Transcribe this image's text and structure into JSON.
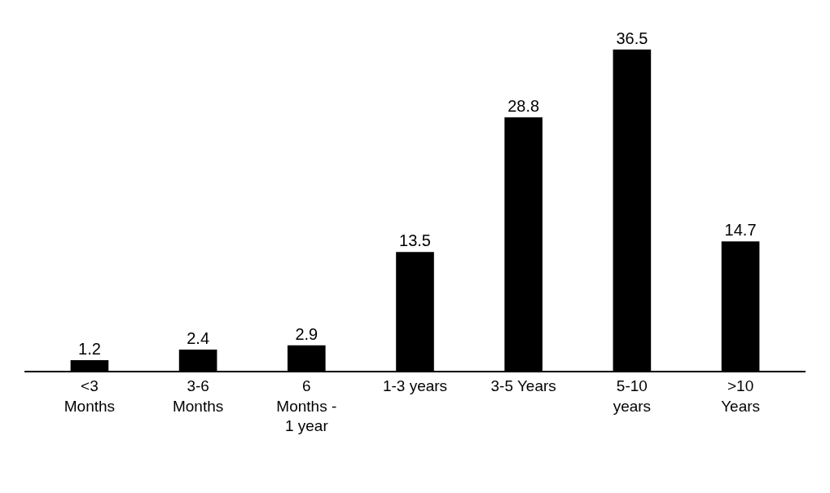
{
  "chart_data": {
    "type": "bar",
    "categories": [
      "<3\nMonths",
      "3-6\nMonths",
      "6\nMonths -\n1 year",
      "1-3 years",
      "3-5 Years",
      "5-10\nyears",
      ">10\nYears"
    ],
    "values": [
      1.2,
      2.4,
      2.9,
      13.5,
      28.8,
      36.5,
      14.7
    ],
    "color": "#000000",
    "data_labels": true,
    "legend": false
  }
}
